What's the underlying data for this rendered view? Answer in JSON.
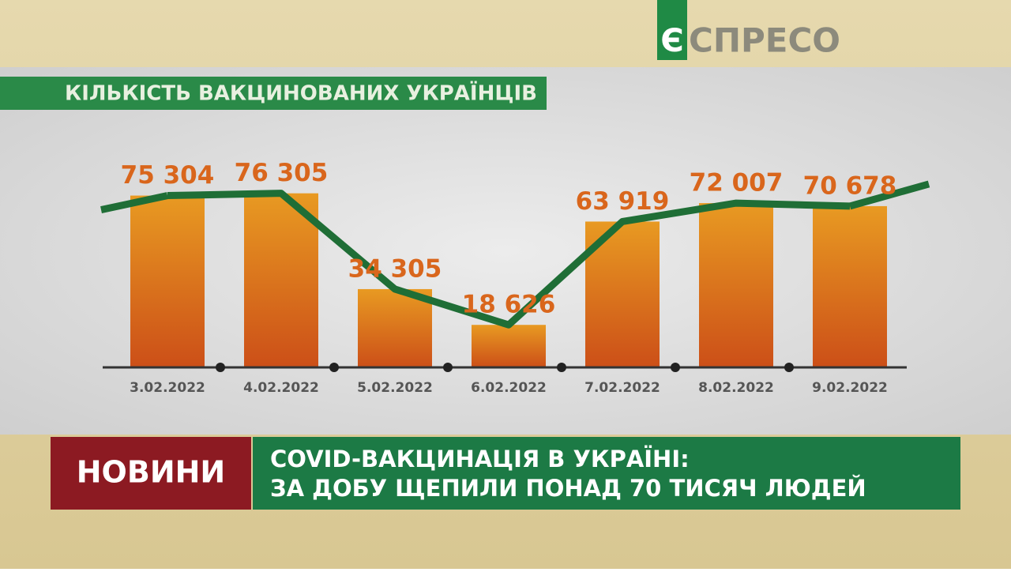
{
  "logo": {
    "mark": "Є",
    "text": "СПРЕСО"
  },
  "chart_data": {
    "type": "bar",
    "title": "КІЛЬКІСТЬ ВАКЦИНОВАНИХ УКРАЇНЦІВ",
    "categories": [
      "3.02.2022",
      "4.02.2022",
      "5.02.2022",
      "6.02.2022",
      "7.02.2022",
      "8.02.2022",
      "9.02.2022"
    ],
    "values": [
      75304,
      76305,
      34305,
      18626,
      63919,
      72007,
      70678
    ],
    "value_labels": [
      "75 304",
      "76 305",
      "34 305",
      "18 626",
      "63 919",
      "72 007",
      "70 678"
    ],
    "color": "#d9661c",
    "line_color": "#1f6e36",
    "ylim": [
      0,
      80000
    ]
  },
  "ticker": {
    "label": "НОВИНИ",
    "headline": [
      "COVID-ВАКЦИНАЦІЯ В УКРАЇНІ:",
      "ЗА ДОБУ ЩЕПИЛИ ПОНАД 70 ТИСЯЧ ЛЮДЕЙ"
    ]
  }
}
